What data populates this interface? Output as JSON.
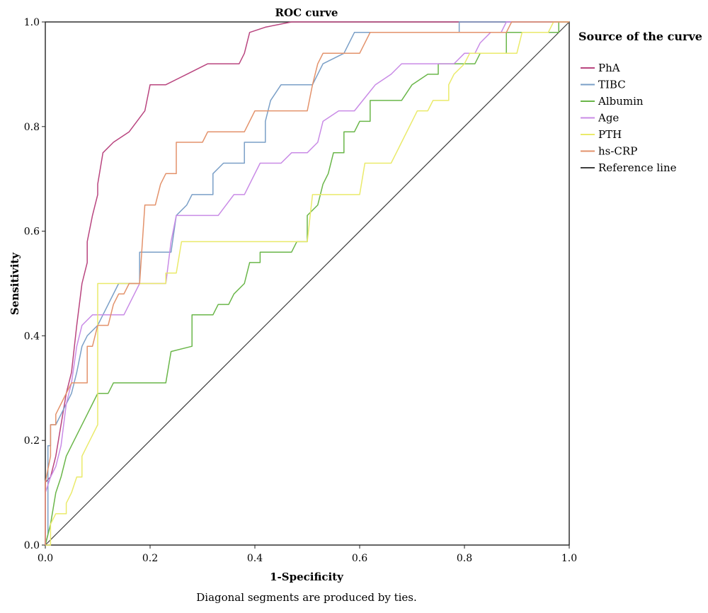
{
  "chart_data": {
    "type": "line",
    "title": "ROC curve",
    "xlabel": "1-Specificity",
    "ylabel": "Sensitivity",
    "footnote": "Diagonal segments are produced by ties.",
    "xlim": [
      0,
      1
    ],
    "ylim": [
      0,
      1
    ],
    "x_ticks": [
      "0.0",
      "0.2",
      "0.4",
      "0.6",
      "0.8",
      "1.0"
    ],
    "y_ticks": [
      "0.0",
      "0.2",
      "0.4",
      "0.6",
      "0.8",
      "1.0"
    ],
    "grid": false,
    "legend_title": "Source of the curve",
    "legend_position": "right",
    "series": [
      {
        "name": "PhA",
        "color": "#b9457f",
        "points": [
          [
            0,
            0
          ],
          [
            0,
            0.12
          ],
          [
            0.01,
            0.13
          ],
          [
            0.02,
            0.17
          ],
          [
            0.03,
            0.23
          ],
          [
            0.04,
            0.29
          ],
          [
            0.05,
            0.33
          ],
          [
            0.06,
            0.42
          ],
          [
            0.07,
            0.5
          ],
          [
            0.08,
            0.54
          ],
          [
            0.08,
            0.58
          ],
          [
            0.09,
            0.63
          ],
          [
            0.1,
            0.67
          ],
          [
            0.1,
            0.69
          ],
          [
            0.11,
            0.75
          ],
          [
            0.13,
            0.77
          ],
          [
            0.16,
            0.79
          ],
          [
            0.19,
            0.83
          ],
          [
            0.2,
            0.88
          ],
          [
            0.23,
            0.88
          ],
          [
            0.27,
            0.9
          ],
          [
            0.31,
            0.92
          ],
          [
            0.37,
            0.92
          ],
          [
            0.38,
            0.94
          ],
          [
            0.39,
            0.98
          ],
          [
            0.42,
            0.99
          ],
          [
            0.47,
            1.0
          ],
          [
            1.0,
            1.0
          ]
        ]
      },
      {
        "name": "TIBC",
        "color": "#7a9fc7",
        "points": [
          [
            0,
            0
          ],
          [
            0.005,
            0.02
          ],
          [
            0.005,
            0.19
          ],
          [
            0.01,
            0.19
          ],
          [
            0.01,
            0.23
          ],
          [
            0.02,
            0.23
          ],
          [
            0.03,
            0.25
          ],
          [
            0.04,
            0.27
          ],
          [
            0.05,
            0.29
          ],
          [
            0.06,
            0.33
          ],
          [
            0.07,
            0.38
          ],
          [
            0.08,
            0.4
          ],
          [
            0.1,
            0.42
          ],
          [
            0.12,
            0.46
          ],
          [
            0.14,
            0.5
          ],
          [
            0.18,
            0.5
          ],
          [
            0.18,
            0.56
          ],
          [
            0.24,
            0.56
          ],
          [
            0.25,
            0.63
          ],
          [
            0.27,
            0.65
          ],
          [
            0.28,
            0.67
          ],
          [
            0.32,
            0.67
          ],
          [
            0.32,
            0.71
          ],
          [
            0.34,
            0.73
          ],
          [
            0.38,
            0.73
          ],
          [
            0.38,
            0.77
          ],
          [
            0.42,
            0.77
          ],
          [
            0.42,
            0.81
          ],
          [
            0.43,
            0.85
          ],
          [
            0.45,
            0.88
          ],
          [
            0.51,
            0.88
          ],
          [
            0.53,
            0.92
          ],
          [
            0.57,
            0.94
          ],
          [
            0.59,
            0.98
          ],
          [
            0.79,
            0.98
          ],
          [
            0.79,
            1.0
          ],
          [
            1.0,
            1.0
          ]
        ]
      },
      {
        "name": "Albumin",
        "color": "#6ab649",
        "points": [
          [
            0,
            0
          ],
          [
            0.01,
            0.04
          ],
          [
            0.02,
            0.1
          ],
          [
            0.03,
            0.13
          ],
          [
            0.04,
            0.17
          ],
          [
            0.05,
            0.19
          ],
          [
            0.06,
            0.21
          ],
          [
            0.08,
            0.25
          ],
          [
            0.09,
            0.27
          ],
          [
            0.1,
            0.29
          ],
          [
            0.12,
            0.29
          ],
          [
            0.13,
            0.31
          ],
          [
            0.23,
            0.31
          ],
          [
            0.24,
            0.37
          ],
          [
            0.28,
            0.38
          ],
          [
            0.28,
            0.44
          ],
          [
            0.32,
            0.44
          ],
          [
            0.33,
            0.46
          ],
          [
            0.35,
            0.46
          ],
          [
            0.36,
            0.48
          ],
          [
            0.38,
            0.5
          ],
          [
            0.39,
            0.54
          ],
          [
            0.41,
            0.54
          ],
          [
            0.41,
            0.56
          ],
          [
            0.47,
            0.56
          ],
          [
            0.48,
            0.58
          ],
          [
            0.5,
            0.58
          ],
          [
            0.5,
            0.63
          ],
          [
            0.52,
            0.65
          ],
          [
            0.53,
            0.69
          ],
          [
            0.54,
            0.71
          ],
          [
            0.55,
            0.75
          ],
          [
            0.57,
            0.75
          ],
          [
            0.57,
            0.79
          ],
          [
            0.59,
            0.79
          ],
          [
            0.6,
            0.81
          ],
          [
            0.62,
            0.81
          ],
          [
            0.62,
            0.85
          ],
          [
            0.68,
            0.85
          ],
          [
            0.7,
            0.88
          ],
          [
            0.73,
            0.9
          ],
          [
            0.75,
            0.9
          ],
          [
            0.75,
            0.92
          ],
          [
            0.82,
            0.92
          ],
          [
            0.83,
            0.94
          ],
          [
            0.88,
            0.94
          ],
          [
            0.88,
            0.98
          ],
          [
            0.98,
            0.98
          ],
          [
            0.98,
            1.0
          ],
          [
            1.0,
            1.0
          ]
        ]
      },
      {
        "name": "Age",
        "color": "#c98be6",
        "points": [
          [
            0,
            0
          ],
          [
            0,
            0.1
          ],
          [
            0.01,
            0.13
          ],
          [
            0.02,
            0.15
          ],
          [
            0.03,
            0.19
          ],
          [
            0.04,
            0.27
          ],
          [
            0.05,
            0.31
          ],
          [
            0.06,
            0.38
          ],
          [
            0.07,
            0.42
          ],
          [
            0.09,
            0.44
          ],
          [
            0.15,
            0.44
          ],
          [
            0.17,
            0.48
          ],
          [
            0.18,
            0.5
          ],
          [
            0.23,
            0.5
          ],
          [
            0.24,
            0.58
          ],
          [
            0.25,
            0.63
          ],
          [
            0.33,
            0.63
          ],
          [
            0.36,
            0.67
          ],
          [
            0.38,
            0.67
          ],
          [
            0.41,
            0.73
          ],
          [
            0.45,
            0.73
          ],
          [
            0.47,
            0.75
          ],
          [
            0.5,
            0.75
          ],
          [
            0.52,
            0.77
          ],
          [
            0.53,
            0.81
          ],
          [
            0.56,
            0.83
          ],
          [
            0.59,
            0.83
          ],
          [
            0.63,
            0.88
          ],
          [
            0.66,
            0.9
          ],
          [
            0.68,
            0.92
          ],
          [
            0.78,
            0.92
          ],
          [
            0.8,
            0.94
          ],
          [
            0.82,
            0.94
          ],
          [
            0.83,
            0.96
          ],
          [
            0.85,
            0.98
          ],
          [
            0.87,
            0.98
          ],
          [
            0.88,
            1.0
          ],
          [
            1.0,
            1.0
          ]
        ]
      },
      {
        "name": "PTH",
        "color": "#eaea6a",
        "points": [
          [
            0,
            0
          ],
          [
            0.01,
            0
          ],
          [
            0.01,
            0.04
          ],
          [
            0.02,
            0.06
          ],
          [
            0.04,
            0.06
          ],
          [
            0.04,
            0.08
          ],
          [
            0.05,
            0.1
          ],
          [
            0.06,
            0.13
          ],
          [
            0.07,
            0.13
          ],
          [
            0.07,
            0.17
          ],
          [
            0.08,
            0.19
          ],
          [
            0.09,
            0.21
          ],
          [
            0.1,
            0.23
          ],
          [
            0.1,
            0.5
          ],
          [
            0.23,
            0.5
          ],
          [
            0.23,
            0.52
          ],
          [
            0.25,
            0.52
          ],
          [
            0.26,
            0.58
          ],
          [
            0.5,
            0.58
          ],
          [
            0.51,
            0.67
          ],
          [
            0.6,
            0.67
          ],
          [
            0.61,
            0.73
          ],
          [
            0.66,
            0.73
          ],
          [
            0.67,
            0.75
          ],
          [
            0.68,
            0.77
          ],
          [
            0.69,
            0.79
          ],
          [
            0.7,
            0.81
          ],
          [
            0.71,
            0.83
          ],
          [
            0.73,
            0.83
          ],
          [
            0.74,
            0.85
          ],
          [
            0.77,
            0.85
          ],
          [
            0.77,
            0.88
          ],
          [
            0.78,
            0.9
          ],
          [
            0.8,
            0.92
          ],
          [
            0.81,
            0.94
          ],
          [
            0.9,
            0.94
          ],
          [
            0.91,
            0.98
          ],
          [
            0.96,
            0.98
          ],
          [
            0.97,
            1.0
          ],
          [
            1.0,
            1.0
          ]
        ]
      },
      {
        "name": "hs-CRP",
        "color": "#e3926b",
        "points": [
          [
            0,
            0
          ],
          [
            0,
            0.12
          ],
          [
            0.01,
            0.17
          ],
          [
            0.01,
            0.23
          ],
          [
            0.02,
            0.23
          ],
          [
            0.02,
            0.25
          ],
          [
            0.03,
            0.27
          ],
          [
            0.04,
            0.29
          ],
          [
            0.05,
            0.31
          ],
          [
            0.08,
            0.31
          ],
          [
            0.08,
            0.38
          ],
          [
            0.09,
            0.38
          ],
          [
            0.1,
            0.42
          ],
          [
            0.12,
            0.42
          ],
          [
            0.13,
            0.46
          ],
          [
            0.14,
            0.48
          ],
          [
            0.15,
            0.48
          ],
          [
            0.16,
            0.5
          ],
          [
            0.18,
            0.5
          ],
          [
            0.19,
            0.65
          ],
          [
            0.21,
            0.65
          ],
          [
            0.22,
            0.69
          ],
          [
            0.23,
            0.71
          ],
          [
            0.25,
            0.71
          ],
          [
            0.25,
            0.77
          ],
          [
            0.3,
            0.77
          ],
          [
            0.31,
            0.79
          ],
          [
            0.38,
            0.79
          ],
          [
            0.4,
            0.83
          ],
          [
            0.5,
            0.83
          ],
          [
            0.51,
            0.88
          ],
          [
            0.52,
            0.92
          ],
          [
            0.53,
            0.94
          ],
          [
            0.6,
            0.94
          ],
          [
            0.61,
            0.96
          ],
          [
            0.62,
            0.98
          ],
          [
            0.88,
            0.98
          ],
          [
            0.89,
            1.0
          ],
          [
            1.0,
            1.0
          ]
        ]
      },
      {
        "name": "Reference line",
        "color": "#3d3d3d",
        "points": [
          [
            0,
            0
          ],
          [
            1,
            1
          ]
        ]
      }
    ]
  }
}
